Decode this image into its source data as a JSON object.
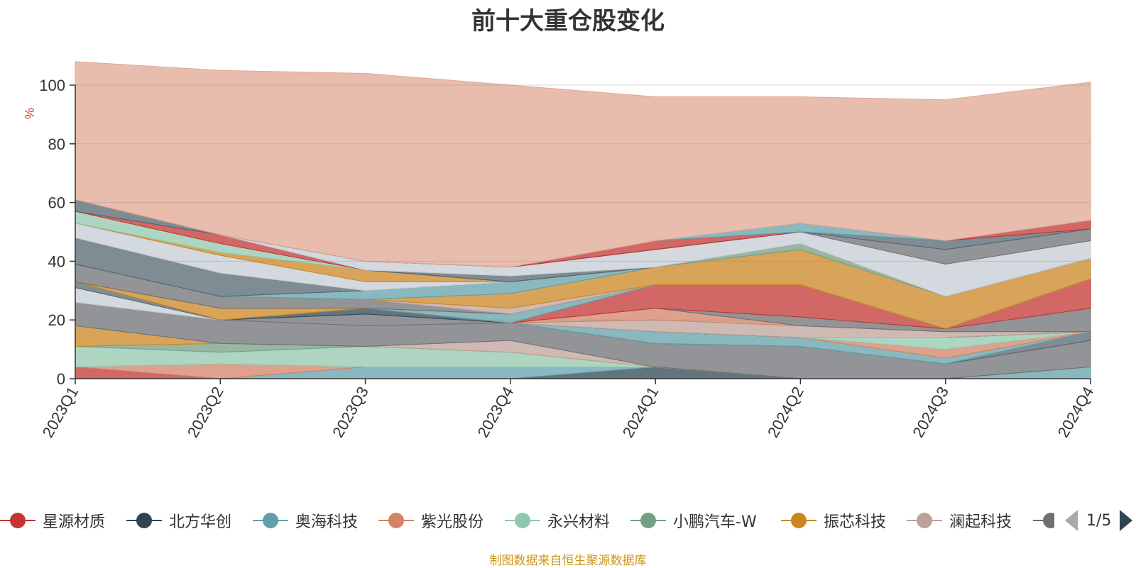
{
  "source_note": "制图数据来自恒生聚源数据库",
  "pager": {
    "text": "1/5"
  },
  "chart_data": {
    "type": "area",
    "title": "前十大重仓股变化",
    "ylabel": "%",
    "xlabel": "",
    "ylim": [
      0,
      100
    ],
    "y_ticks": [
      "0",
      "20",
      "40",
      "60",
      "80",
      "100"
    ],
    "categories": [
      "2023Q1",
      "2023Q2",
      "2023Q3",
      "2023Q4",
      "2024Q1",
      "2024Q2",
      "2024Q3",
      "2024Q4"
    ],
    "grid": true,
    "legend_placement": "bottom",
    "stacked": true,
    "series": [
      {
        "name": "星源材质",
        "color": "#c23531",
        "values": [
          4,
          0,
          0,
          0,
          0,
          0,
          0,
          0
        ]
      },
      {
        "name": "北方华创",
        "color": "#2f4554",
        "values": [
          0,
          0,
          0,
          0,
          4,
          0,
          0,
          0
        ]
      },
      {
        "name": "奥海科技",
        "color": "#61a0a8",
        "values": [
          0,
          0,
          4,
          4,
          0,
          0,
          0,
          4
        ]
      },
      {
        "name": "紫光股份",
        "color": "#d48265",
        "values": [
          0,
          5,
          0,
          0,
          0,
          0,
          0,
          0
        ]
      },
      {
        "name": "永兴材料",
        "color": "#91c7ae",
        "values": [
          7,
          4,
          7,
          5,
          0,
          0,
          0,
          0
        ]
      },
      {
        "name": "小鹏汽车-W",
        "color": "#749f83",
        "values": [
          0,
          3,
          0,
          0,
          0,
          0,
          0,
          0
        ]
      },
      {
        "name": "振芯科技",
        "color": "#ca8622",
        "values": [
          7,
          0,
          0,
          0,
          0,
          0,
          0,
          0
        ]
      },
      {
        "name": "澜起科技",
        "color": "#bda29a",
        "values": [
          0,
          0,
          0,
          4,
          0,
          0,
          0,
          0
        ]
      },
      {
        "color": "#6e7074",
        "values": [
          8,
          8,
          7,
          6,
          8,
          11,
          5,
          9
        ]
      },
      {
        "color": "#546570",
        "values": [
          0,
          0,
          0,
          0,
          0,
          0,
          0,
          3
        ]
      },
      {
        "color": "#61a0a8",
        "values": [
          0,
          0,
          0,
          0,
          4,
          3,
          2,
          0
        ]
      },
      {
        "color": "#d48265",
        "values": [
          0,
          0,
          0,
          0,
          0,
          0,
          3,
          0
        ]
      },
      {
        "color": "#91c7ae",
        "values": [
          0,
          0,
          0,
          0,
          0,
          0,
          4,
          0
        ]
      },
      {
        "color": "#6e7074",
        "values": [
          0,
          0,
          4,
          0,
          0,
          0,
          0,
          0
        ]
      },
      {
        "color": "#2f4554",
        "values": [
          0,
          0,
          2,
          0,
          0,
          0,
          0,
          0
        ]
      },
      {
        "color": "#bda29a",
        "values": [
          0,
          0,
          0,
          0,
          4,
          4,
          2,
          0
        ]
      },
      {
        "color": "#d48265",
        "values": [
          0,
          0,
          0,
          0,
          4,
          0,
          0,
          0
        ]
      },
      {
        "color": "#6e7074",
        "values": [
          0,
          0,
          0,
          0,
          0,
          3,
          1,
          8
        ]
      },
      {
        "color": "#c23531",
        "values": [
          0,
          0,
          0,
          0,
          8,
          11,
          0,
          10
        ]
      },
      {
        "color": "#61a0a8",
        "values": [
          0,
          0,
          0,
          3,
          0,
          0,
          0,
          0
        ]
      },
      {
        "color": "#c4ccd3",
        "values": [
          5,
          0,
          0,
          0,
          0,
          0,
          0,
          0
        ]
      },
      {
        "color": "#546570",
        "values": [
          2,
          0,
          0,
          0,
          0,
          0,
          0,
          0
        ]
      },
      {
        "color": "#ca8622",
        "values": [
          0,
          4,
          0,
          0,
          0,
          0,
          0,
          0
        ]
      },
      {
        "color": "#6e7074",
        "values": [
          6,
          4,
          3,
          0,
          0,
          0,
          0,
          0
        ]
      },
      {
        "color": "#bda29a",
        "values": [
          0,
          0,
          0,
          2,
          0,
          0,
          0,
          0
        ]
      },
      {
        "color": "#ca8622",
        "values": [
          0,
          0,
          0,
          5,
          6,
          12,
          11,
          7
        ]
      },
      {
        "color": "#749f83",
        "values": [
          0,
          0,
          0,
          0,
          0,
          2,
          0,
          0
        ]
      },
      {
        "color": "#61a0a8",
        "values": [
          0,
          0,
          3,
          4,
          0,
          0,
          0,
          0
        ]
      },
      {
        "color": "#546570",
        "values": [
          9,
          8,
          0,
          0,
          0,
          0,
          0,
          0
        ]
      },
      {
        "color": "#c4ccd3",
        "values": [
          5,
          6,
          3,
          0,
          0,
          0,
          0,
          0
        ]
      },
      {
        "color": "#ca8622",
        "values": [
          0,
          1,
          4,
          0,
          0,
          0,
          0,
          0
        ]
      },
      {
        "color": "#91c7ae",
        "values": [
          4,
          3,
          0,
          0,
          0,
          0,
          0,
          0
        ]
      },
      {
        "color": "#c23531",
        "values": [
          0,
          3,
          0,
          0,
          0,
          0,
          0,
          0
        ]
      },
      {
        "color": "#546570",
        "values": [
          4,
          0,
          0,
          2,
          0,
          0,
          0,
          0
        ]
      },
      {
        "color": "#c4ccd3",
        "values": [
          0,
          0,
          3,
          3,
          6,
          4,
          11,
          6
        ]
      },
      {
        "color": "#6e7074",
        "values": [
          0,
          0,
          0,
          0,
          0,
          0,
          5,
          4
        ]
      },
      {
        "color": "#546570",
        "values": [
          0,
          0,
          0,
          0,
          0,
          0,
          3,
          0
        ]
      },
      {
        "color": "#c23531",
        "values": [
          0,
          0,
          0,
          0,
          3,
          0,
          0,
          3
        ]
      },
      {
        "color": "#61a0a8",
        "values": [
          0,
          0,
          0,
          0,
          0,
          3,
          0,
          0
        ]
      },
      {
        "color": "#e0a792",
        "values": [
          47,
          56,
          64,
          62,
          49,
          43,
          48,
          47
        ]
      }
    ]
  }
}
